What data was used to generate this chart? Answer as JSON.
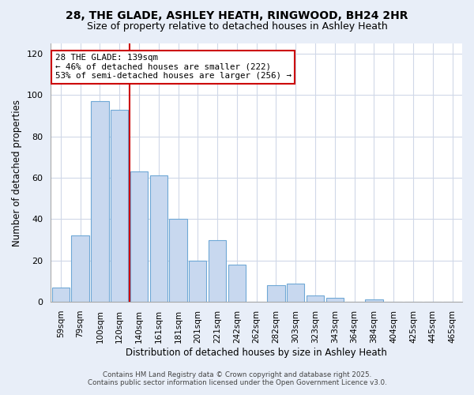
{
  "title_line1": "28, THE GLADE, ASHLEY HEATH, RINGWOOD, BH24 2HR",
  "title_line2": "Size of property relative to detached houses in Ashley Heath",
  "xlabel": "Distribution of detached houses by size in Ashley Heath",
  "ylabel": "Number of detached properties",
  "bar_labels": [
    "59sqm",
    "79sqm",
    "100sqm",
    "120sqm",
    "140sqm",
    "161sqm",
    "181sqm",
    "201sqm",
    "221sqm",
    "242sqm",
    "262sqm",
    "282sqm",
    "303sqm",
    "323sqm",
    "343sqm",
    "364sqm",
    "384sqm",
    "404sqm",
    "425sqm",
    "445sqm",
    "465sqm"
  ],
  "bar_values": [
    7,
    32,
    97,
    93,
    63,
    61,
    40,
    20,
    30,
    18,
    0,
    8,
    9,
    3,
    2,
    0,
    1,
    0,
    0,
    0,
    0
  ],
  "bar_color": "#c8d8ef",
  "bar_edge_color": "#6fa8d6",
  "vline_color": "#cc0000",
  "annotation_text": "28 THE GLADE: 139sqm\n← 46% of detached houses are smaller (222)\n53% of semi-detached houses are larger (256) →",
  "annotation_box_color": "white",
  "annotation_box_edge": "#cc0000",
  "ylim": [
    0,
    125
  ],
  "yticks": [
    0,
    20,
    40,
    60,
    80,
    100,
    120
  ],
  "grid_color": "#d0d8e8",
  "plot_bg": "white",
  "fig_bg": "#e8eef8",
  "footer_line1": "Contains HM Land Registry data © Crown copyright and database right 2025.",
  "footer_line2": "Contains public sector information licensed under the Open Government Licence v3.0."
}
